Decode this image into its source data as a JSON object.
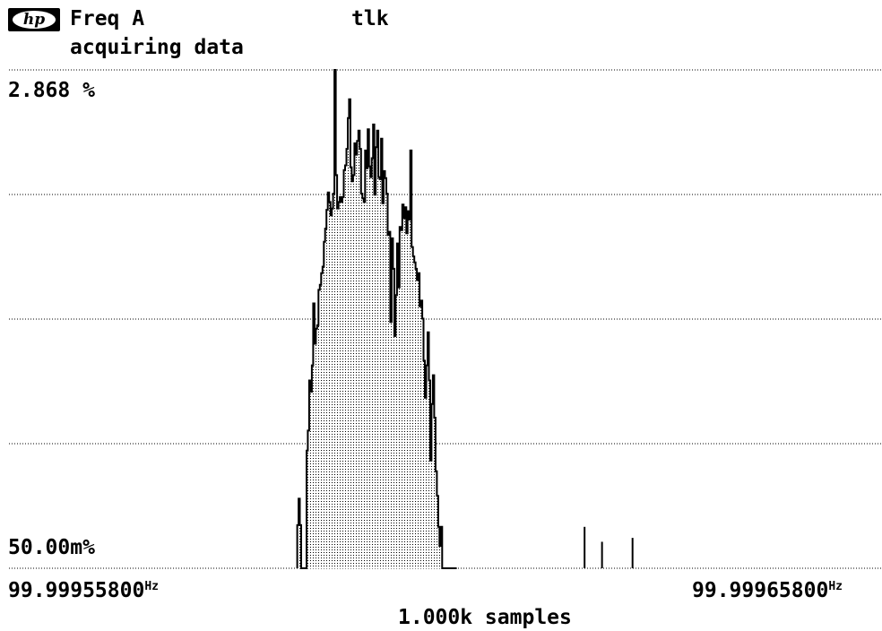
{
  "header": {
    "logo_text": "hp",
    "measurement": "Freq A",
    "status": "tlk",
    "message": "acquiring data"
  },
  "chart_data": {
    "type": "histogram",
    "y_top_label": "2.868 %",
    "y_bottom_label": "50.00m%",
    "y_scale": "log",
    "ylim_percent": [
      0.05,
      2.868
    ],
    "x_left_label": "99.99955800",
    "x_right_label": "99.99965800",
    "x_unit": "Hz",
    "xlim": [
      99.999558,
      99.999658
    ],
    "footer": "1.000k samples",
    "samples": 1000,
    "grid": true,
    "bin_heights_percent": [
      0.071,
      0.088,
      0.071,
      0.05,
      0.05,
      0.05,
      0.05,
      0.13,
      0.153,
      0.23,
      0.21,
      0.26,
      0.43,
      0.31,
      0.35,
      0.36,
      0.48,
      0.5,
      0.55,
      0.58,
      0.71,
      0.79,
      0.92,
      1.06,
      0.98,
      0.88,
      0.93,
      1.05,
      2.868,
      1.22,
      0.93,
      0.98,
      1.02,
      0.98,
      1.02,
      1.27,
      1.32,
      1.51,
      1.94,
      2.26,
      1.3,
      1.16,
      1.22,
      1.58,
      1.44,
      1.61,
      1.75,
      1.51,
      1.05,
      1.01,
      0.98,
      1.49,
      1.29,
      1.77,
      1.31,
      1.2,
      1.4,
      1.84,
      1.04,
      1.53,
      1.75,
      1.2,
      1.18,
      1.64,
      0.97,
      1.26,
      1.19,
      1.05,
      0.75,
      0.77,
      0.37,
      0.73,
      0.57,
      0.33,
      0.46,
      0.7,
      0.49,
      0.8,
      0.78,
      0.96,
      0.86,
      0.94,
      0.76,
      0.91,
      0.85,
      1.49,
      0.68,
      0.63,
      0.6,
      0.57,
      0.52,
      0.55,
      0.42,
      0.44,
      0.38,
      0.27,
      0.2,
      0.26,
      0.34,
      0.23,
      0.12,
      0.19,
      0.24,
      0.17,
      0.11,
      0.09,
      0.07,
      0.06,
      0.07,
      0.05,
      0.05,
      0.05,
      0.05,
      0.05,
      0.05,
      0.05,
      0.05,
      0.05,
      0.05,
      0.05
    ],
    "spikes": [
      {
        "x": 99.999624,
        "value_percent": 0.07
      },
      {
        "x": 99.999626,
        "value_percent": 0.062
      },
      {
        "x": 99.9996295,
        "value_percent": 0.064
      }
    ]
  },
  "colors": {
    "ink": "#000000",
    "fill_dot": "#000000",
    "grid": "#555555",
    "background": "#ffffff"
  }
}
